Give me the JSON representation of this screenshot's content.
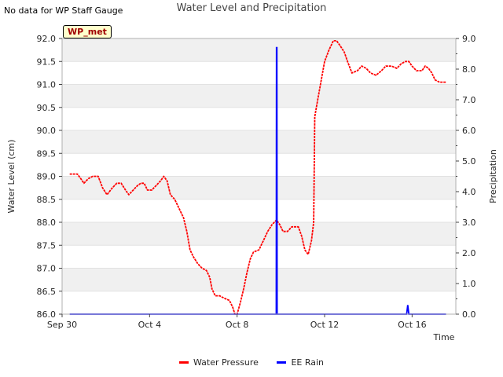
{
  "header": {
    "corner_note": "No data for WP Staff Gauge",
    "badge_label": "WP_met"
  },
  "chart_data": {
    "type": "line",
    "title": "Water Level and Precipitation",
    "xlabel": "Time",
    "ylabel_left": "Water Level (cm)",
    "ylabel_right": "Precipitation",
    "x_ticks": [
      "Sep 30",
      "Oct 4",
      "Oct 8",
      "Oct 12",
      "Oct 16"
    ],
    "x_tick_days": [
      0,
      4,
      8,
      12,
      16
    ],
    "x_range_days": [
      0,
      18
    ],
    "ylim_left": [
      86.0,
      92.0
    ],
    "y_ticks_left": [
      "86.0",
      "86.5",
      "87.0",
      "87.5",
      "88.0",
      "88.5",
      "89.0",
      "89.5",
      "90.0",
      "90.5",
      "91.0",
      "91.5",
      "92.0"
    ],
    "ylim_right": [
      0.0,
      9.0
    ],
    "y_ticks_right": [
      "0.0",
      "1.0",
      "2.0",
      "3.0",
      "4.0",
      "5.0",
      "6.0",
      "7.0",
      "8.0",
      "9.0"
    ],
    "grid": "horizontal bands",
    "legend_position": "bottom-center",
    "colors": {
      "water": "#ff0000",
      "rain": "#0000ff",
      "band": "#f0f0f0"
    },
    "series": [
      {
        "name": "Water Pressure",
        "axis": "left",
        "points": [
          [
            0.35,
            89.05
          ],
          [
            0.7,
            89.05
          ],
          [
            0.85,
            88.95
          ],
          [
            1.0,
            88.85
          ],
          [
            1.2,
            88.95
          ],
          [
            1.4,
            89.0
          ],
          [
            1.65,
            89.0
          ],
          [
            1.85,
            88.75
          ],
          [
            2.05,
            88.6
          ],
          [
            2.3,
            88.75
          ],
          [
            2.5,
            88.85
          ],
          [
            2.7,
            88.85
          ],
          [
            2.9,
            88.7
          ],
          [
            3.05,
            88.6
          ],
          [
            3.25,
            88.7
          ],
          [
            3.45,
            88.8
          ],
          [
            3.6,
            88.85
          ],
          [
            3.75,
            88.85
          ],
          [
            3.9,
            88.7
          ],
          [
            4.1,
            88.7
          ],
          [
            4.3,
            88.8
          ],
          [
            4.5,
            88.9
          ],
          [
            4.65,
            89.0
          ],
          [
            4.8,
            88.9
          ],
          [
            4.95,
            88.6
          ],
          [
            5.15,
            88.5
          ],
          [
            5.35,
            88.3
          ],
          [
            5.55,
            88.1
          ],
          [
            5.7,
            87.8
          ],
          [
            5.85,
            87.4
          ],
          [
            6.0,
            87.25
          ],
          [
            6.2,
            87.1
          ],
          [
            6.4,
            87.0
          ],
          [
            6.6,
            86.95
          ],
          [
            6.75,
            86.8
          ],
          [
            6.85,
            86.55
          ],
          [
            7.0,
            86.4
          ],
          [
            7.2,
            86.4
          ],
          [
            7.4,
            86.35
          ],
          [
            7.65,
            86.3
          ],
          [
            7.8,
            86.15
          ],
          [
            7.9,
            86.0
          ],
          [
            8.0,
            86.0
          ],
          [
            8.15,
            86.25
          ],
          [
            8.3,
            86.55
          ],
          [
            8.45,
            86.9
          ],
          [
            8.6,
            87.2
          ],
          [
            8.75,
            87.35
          ],
          [
            9.0,
            87.4
          ],
          [
            9.2,
            87.6
          ],
          [
            9.4,
            87.8
          ],
          [
            9.6,
            87.95
          ],
          [
            9.8,
            88.05
          ],
          [
            9.95,
            87.95
          ],
          [
            10.1,
            87.8
          ],
          [
            10.3,
            87.8
          ],
          [
            10.5,
            87.9
          ],
          [
            10.8,
            87.9
          ],
          [
            10.95,
            87.7
          ],
          [
            11.1,
            87.4
          ],
          [
            11.25,
            87.3
          ],
          [
            11.4,
            87.6
          ],
          [
            11.5,
            88.0
          ],
          [
            11.55,
            90.3
          ],
          [
            11.7,
            90.7
          ],
          [
            11.85,
            91.1
          ],
          [
            12.0,
            91.5
          ],
          [
            12.2,
            91.75
          ],
          [
            12.4,
            91.95
          ],
          [
            12.55,
            91.95
          ],
          [
            12.7,
            91.85
          ],
          [
            12.9,
            91.7
          ],
          [
            13.05,
            91.5
          ],
          [
            13.25,
            91.25
          ],
          [
            13.5,
            91.3
          ],
          [
            13.7,
            91.4
          ],
          [
            13.9,
            91.35
          ],
          [
            14.1,
            91.25
          ],
          [
            14.35,
            91.2
          ],
          [
            14.6,
            91.3
          ],
          [
            14.8,
            91.4
          ],
          [
            15.05,
            91.4
          ],
          [
            15.3,
            91.35
          ],
          [
            15.5,
            91.45
          ],
          [
            15.7,
            91.5
          ],
          [
            15.85,
            91.5
          ],
          [
            16.0,
            91.4
          ],
          [
            16.2,
            91.3
          ],
          [
            16.45,
            91.3
          ],
          [
            16.6,
            91.4
          ],
          [
            16.75,
            91.35
          ],
          [
            16.9,
            91.25
          ],
          [
            17.05,
            91.1
          ],
          [
            17.25,
            91.05
          ],
          [
            17.55,
            91.05
          ]
        ]
      },
      {
        "name": "EE Rain",
        "axis": "right",
        "points": [
          [
            0.35,
            0.0
          ],
          [
            9.79,
            0.0
          ],
          [
            9.8,
            8.7
          ],
          [
            9.82,
            8.7
          ],
          [
            9.83,
            0.0
          ],
          [
            15.75,
            0.0
          ],
          [
            15.8,
            0.3
          ],
          [
            15.85,
            0.0
          ],
          [
            17.55,
            0.0
          ]
        ]
      }
    ]
  }
}
